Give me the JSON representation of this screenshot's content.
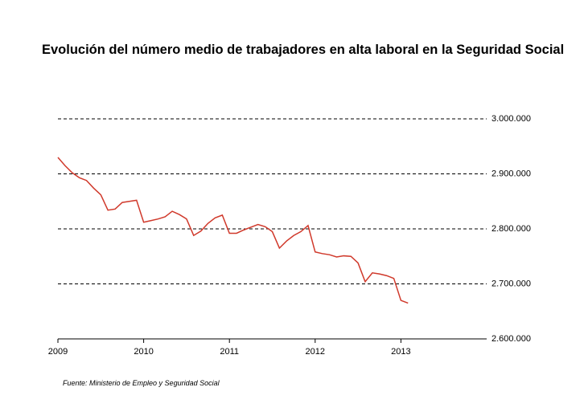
{
  "chart_data": {
    "type": "line",
    "title": "Evolución del número medio de trabajadores en alta laboral en la Seguridad Social",
    "source": "Fuente: Ministerio de Empleo y Seguridad Social",
    "x": [
      2009,
      2009.083,
      2009.167,
      2009.25,
      2009.333,
      2009.417,
      2009.5,
      2009.583,
      2009.667,
      2009.75,
      2009.833,
      2009.917,
      2010,
      2010.083,
      2010.167,
      2010.25,
      2010.333,
      2010.417,
      2010.5,
      2010.583,
      2010.667,
      2010.75,
      2010.833,
      2010.917,
      2011,
      2011.083,
      2011.167,
      2011.25,
      2011.333,
      2011.417,
      2011.5,
      2011.583,
      2011.667,
      2011.75,
      2011.833,
      2011.917,
      2012,
      2012.083,
      2012.167,
      2012.25,
      2012.333,
      2012.417,
      2012.5,
      2012.583,
      2012.667,
      2012.75,
      2012.833,
      2012.917,
      2013,
      2013.083
    ],
    "series": [
      {
        "name": null,
        "color": "#d0392b",
        "values": [
          2930000,
          2915000,
          2902000,
          2893000,
          2888000,
          2874000,
          2862000,
          2834000,
          2836000,
          2848000,
          2850000,
          2852000,
          2812000,
          2815000,
          2818000,
          2822000,
          2832000,
          2826000,
          2818000,
          2788000,
          2796000,
          2810000,
          2820000,
          2825000,
          2792000,
          2792000,
          2798000,
          2803000,
          2808000,
          2804000,
          2795000,
          2765000,
          2778000,
          2788000,
          2795000,
          2806000,
          2758000,
          2755000,
          2753000,
          2749000,
          2751000,
          2750000,
          2738000,
          2704000,
          2720000,
          2718000,
          2715000,
          2710000,
          2670000,
          2665000
        ]
      }
    ],
    "xlim": [
      2009,
      2014
    ],
    "xticks": [
      2009,
      2010,
      2011,
      2012,
      2013
    ],
    "ylim": [
      2600000,
      3000000
    ],
    "yticks": [
      {
        "value": 2600000,
        "label": "2.600.000"
      },
      {
        "value": 2700000,
        "label": "2.700.000"
      },
      {
        "value": 2800000,
        "label": "2.800.000"
      },
      {
        "value": 2900000,
        "label": "2.900.000"
      },
      {
        "value": 3000000,
        "label": "3.000.000"
      }
    ],
    "grid": true
  }
}
